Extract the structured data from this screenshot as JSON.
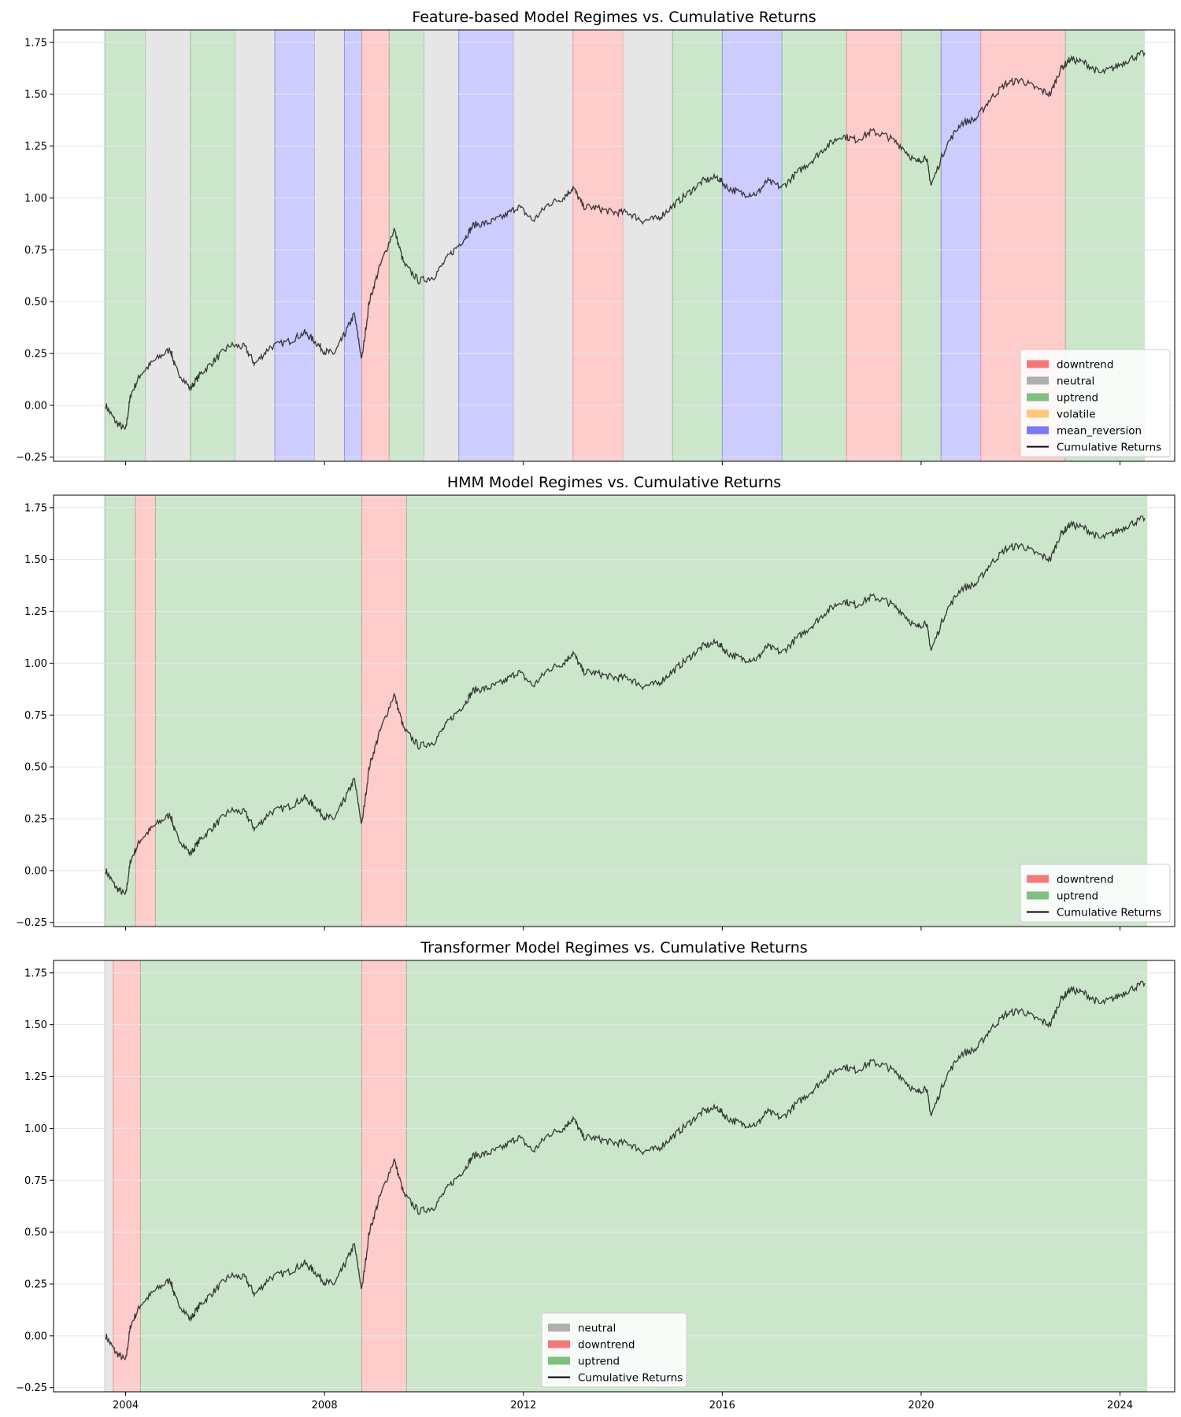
{
  "chart_data": [
    {
      "type": "line",
      "title": "Feature-based Model Regimes vs. Cumulative Returns",
      "xlabel": "",
      "ylabel": "",
      "xlim": [
        2002.55,
        2025.1
      ],
      "ylim": [
        -0.27,
        1.81
      ],
      "y_ticks": [
        -0.25,
        0.0,
        0.25,
        0.5,
        0.75,
        1.0,
        1.25,
        1.5,
        1.75
      ],
      "y_tick_labels": [
        "−0.25",
        "0.00",
        "0.25",
        "0.50",
        "0.75",
        "1.00",
        "1.25",
        "1.50",
        "1.75"
      ],
      "x_ticks": [
        2004,
        2008,
        2012,
        2016,
        2020,
        2024
      ],
      "x_tick_labels": [
        "",
        "",
        "",
        "",
        "",
        ""
      ],
      "grid": true,
      "legend_position": "lower-right",
      "legend": [
        {
          "label": "downtrend",
          "kind": "patch",
          "color": "#f47a7a"
        },
        {
          "label": "neutral",
          "kind": "patch",
          "color": "#b0b0b0"
        },
        {
          "label": "uptrend",
          "kind": "patch",
          "color": "#7fbf7f"
        },
        {
          "label": "volatile",
          "kind": "patch",
          "color": "#ffc77a"
        },
        {
          "label": "mean_reversion",
          "kind": "patch",
          "color": "#7a7af4"
        },
        {
          "label": "Cumulative Returns",
          "kind": "line",
          "color": "#000000"
        }
      ],
      "regimes": [
        {
          "start": 2003.58,
          "end": 2004.4,
          "regime": "uptrend"
        },
        {
          "start": 2004.4,
          "end": 2005.3,
          "regime": "neutral"
        },
        {
          "start": 2005.3,
          "end": 2006.2,
          "regime": "uptrend"
        },
        {
          "start": 2006.2,
          "end": 2007.0,
          "regime": "neutral"
        },
        {
          "start": 2007.0,
          "end": 2007.8,
          "regime": "mean_reversion"
        },
        {
          "start": 2007.8,
          "end": 2008.4,
          "regime": "neutral"
        },
        {
          "start": 2008.4,
          "end": 2008.75,
          "regime": "mean_reversion"
        },
        {
          "start": 2008.75,
          "end": 2009.3,
          "regime": "downtrend"
        },
        {
          "start": 2009.3,
          "end": 2010.0,
          "regime": "uptrend"
        },
        {
          "start": 2010.0,
          "end": 2010.7,
          "regime": "neutral"
        },
        {
          "start": 2010.7,
          "end": 2011.8,
          "regime": "mean_reversion"
        },
        {
          "start": 2011.8,
          "end": 2013.0,
          "regime": "neutral"
        },
        {
          "start": 2013.0,
          "end": 2014.0,
          "regime": "downtrend"
        },
        {
          "start": 2014.0,
          "end": 2015.0,
          "regime": "neutral"
        },
        {
          "start": 2015.0,
          "end": 2016.0,
          "regime": "uptrend"
        },
        {
          "start": 2016.0,
          "end": 2017.2,
          "regime": "mean_reversion"
        },
        {
          "start": 2017.2,
          "end": 2018.5,
          "regime": "uptrend"
        },
        {
          "start": 2018.5,
          "end": 2019.6,
          "regime": "downtrend"
        },
        {
          "start": 2019.6,
          "end": 2020.4,
          "regime": "uptrend"
        },
        {
          "start": 2020.4,
          "end": 2021.2,
          "regime": "mean_reversion"
        },
        {
          "start": 2021.2,
          "end": 2022.9,
          "regime": "downtrend"
        },
        {
          "start": 2022.9,
          "end": 2024.5,
          "regime": "uptrend"
        }
      ],
      "series": [
        {
          "name": "Cumulative Returns",
          "x": [
            2003.6,
            2003.8,
            2004.0,
            2004.1,
            2004.3,
            2004.6,
            2004.9,
            2005.0,
            2005.3,
            2005.5,
            2005.8,
            2006.1,
            2006.4,
            2006.6,
            2006.9,
            2007.3,
            2007.6,
            2007.8,
            2008.0,
            2008.2,
            2008.4,
            2008.6,
            2008.75,
            2008.9,
            2009.1,
            2009.4,
            2009.6,
            2009.9,
            2010.2,
            2010.5,
            2010.8,
            2011.0,
            2011.3,
            2011.6,
            2011.9,
            2012.2,
            2012.5,
            2012.8,
            2013.0,
            2013.2,
            2013.5,
            2013.8,
            2014.1,
            2014.4,
            2014.7,
            2015.0,
            2015.3,
            2015.6,
            2015.9,
            2016.1,
            2016.4,
            2016.7,
            2016.9,
            2017.2,
            2017.5,
            2017.8,
            2018.1,
            2018.4,
            2018.7,
            2019.0,
            2019.3,
            2019.6,
            2019.9,
            2020.1,
            2020.2,
            2020.5,
            2020.8,
            2021.1,
            2021.4,
            2021.7,
            2022.0,
            2022.3,
            2022.6,
            2022.8,
            2023.0,
            2023.3,
            2023.6,
            2023.9,
            2024.2,
            2024.5
          ],
          "y": [
            0.0,
            -0.08,
            -0.12,
            0.05,
            0.15,
            0.22,
            0.27,
            0.18,
            0.08,
            0.15,
            0.22,
            0.29,
            0.28,
            0.2,
            0.28,
            0.31,
            0.35,
            0.31,
            0.26,
            0.25,
            0.34,
            0.44,
            0.22,
            0.5,
            0.66,
            0.85,
            0.68,
            0.6,
            0.62,
            0.72,
            0.8,
            0.87,
            0.88,
            0.91,
            0.96,
            0.89,
            0.97,
            1.0,
            1.05,
            0.96,
            0.95,
            0.93,
            0.93,
            0.89,
            0.9,
            0.96,
            1.02,
            1.08,
            1.1,
            1.05,
            1.02,
            1.02,
            1.08,
            1.05,
            1.12,
            1.18,
            1.25,
            1.3,
            1.28,
            1.32,
            1.3,
            1.25,
            1.17,
            1.2,
            1.06,
            1.25,
            1.36,
            1.38,
            1.48,
            1.55,
            1.57,
            1.53,
            1.5,
            1.62,
            1.67,
            1.65,
            1.6,
            1.63,
            1.67,
            1.7
          ]
        }
      ]
    },
    {
      "type": "line",
      "title": "HMM Model Regimes vs. Cumulative Returns",
      "xlabel": "",
      "ylabel": "",
      "xlim": [
        2002.55,
        2025.1
      ],
      "ylim": [
        -0.27,
        1.81
      ],
      "y_ticks": [
        -0.25,
        0.0,
        0.25,
        0.5,
        0.75,
        1.0,
        1.25,
        1.5,
        1.75
      ],
      "y_tick_labels": [
        "−0.25",
        "0.00",
        "0.25",
        "0.50",
        "0.75",
        "1.00",
        "1.25",
        "1.50",
        "1.75"
      ],
      "x_ticks": [
        2004,
        2008,
        2012,
        2016,
        2020,
        2024
      ],
      "x_tick_labels": [
        "",
        "",
        "",
        "",
        "",
        ""
      ],
      "grid": true,
      "legend_position": "lower-right",
      "legend": [
        {
          "label": "downtrend",
          "kind": "patch",
          "color": "#f47a7a"
        },
        {
          "label": "uptrend",
          "kind": "patch",
          "color": "#7fbf7f"
        },
        {
          "label": "Cumulative Returns",
          "kind": "line",
          "color": "#000000"
        }
      ],
      "regimes": [
        {
          "start": 2003.58,
          "end": 2004.2,
          "regime": "uptrend"
        },
        {
          "start": 2004.2,
          "end": 2004.6,
          "regime": "downtrend"
        },
        {
          "start": 2004.6,
          "end": 2008.75,
          "regime": "uptrend"
        },
        {
          "start": 2008.75,
          "end": 2009.65,
          "regime": "downtrend"
        },
        {
          "start": 2009.65,
          "end": 2024.55,
          "regime": "uptrend"
        }
      ],
      "series": [
        {
          "name": "Cumulative Returns",
          "x": [
            2003.6,
            2003.8,
            2004.0,
            2004.1,
            2004.3,
            2004.6,
            2004.9,
            2005.0,
            2005.3,
            2005.5,
            2005.8,
            2006.1,
            2006.4,
            2006.6,
            2006.9,
            2007.3,
            2007.6,
            2007.8,
            2008.0,
            2008.2,
            2008.4,
            2008.6,
            2008.75,
            2008.9,
            2009.1,
            2009.4,
            2009.6,
            2009.9,
            2010.2,
            2010.5,
            2010.8,
            2011.0,
            2011.3,
            2011.6,
            2011.9,
            2012.2,
            2012.5,
            2012.8,
            2013.0,
            2013.2,
            2013.5,
            2013.8,
            2014.1,
            2014.4,
            2014.7,
            2015.0,
            2015.3,
            2015.6,
            2015.9,
            2016.1,
            2016.4,
            2016.7,
            2016.9,
            2017.2,
            2017.5,
            2017.8,
            2018.1,
            2018.4,
            2018.7,
            2019.0,
            2019.3,
            2019.6,
            2019.9,
            2020.1,
            2020.2,
            2020.5,
            2020.8,
            2021.1,
            2021.4,
            2021.7,
            2022.0,
            2022.3,
            2022.6,
            2022.8,
            2023.0,
            2023.3,
            2023.6,
            2023.9,
            2024.2,
            2024.5
          ],
          "y": [
            0.0,
            -0.08,
            -0.12,
            0.05,
            0.15,
            0.22,
            0.27,
            0.18,
            0.08,
            0.15,
            0.22,
            0.29,
            0.28,
            0.2,
            0.28,
            0.31,
            0.35,
            0.31,
            0.26,
            0.25,
            0.34,
            0.44,
            0.22,
            0.5,
            0.66,
            0.85,
            0.68,
            0.6,
            0.62,
            0.72,
            0.8,
            0.87,
            0.88,
            0.91,
            0.96,
            0.89,
            0.97,
            1.0,
            1.05,
            0.96,
            0.95,
            0.93,
            0.93,
            0.89,
            0.9,
            0.96,
            1.02,
            1.08,
            1.1,
            1.05,
            1.02,
            1.02,
            1.08,
            1.05,
            1.12,
            1.18,
            1.25,
            1.3,
            1.28,
            1.32,
            1.3,
            1.25,
            1.17,
            1.2,
            1.06,
            1.25,
            1.36,
            1.38,
            1.48,
            1.55,
            1.57,
            1.53,
            1.5,
            1.62,
            1.67,
            1.65,
            1.6,
            1.63,
            1.67,
            1.7
          ]
        }
      ]
    },
    {
      "type": "line",
      "title": "Transformer Model Regimes vs. Cumulative Returns",
      "xlabel": "",
      "ylabel": "",
      "xlim": [
        2002.55,
        2025.1
      ],
      "ylim": [
        -0.27,
        1.81
      ],
      "y_ticks": [
        -0.25,
        0.0,
        0.25,
        0.5,
        0.75,
        1.0,
        1.25,
        1.5,
        1.75
      ],
      "y_tick_labels": [
        "−0.25",
        "0.00",
        "0.25",
        "0.50",
        "0.75",
        "1.00",
        "1.25",
        "1.50",
        "1.75"
      ],
      "x_ticks": [
        2004,
        2008,
        2012,
        2016,
        2020,
        2024
      ],
      "x_tick_labels": [
        "2004",
        "2008",
        "2012",
        "2016",
        "2020",
        "2024"
      ],
      "grid": true,
      "legend_position": "lower-center",
      "legend": [
        {
          "label": "neutral",
          "kind": "patch",
          "color": "#b0b0b0"
        },
        {
          "label": "downtrend",
          "kind": "patch",
          "color": "#f47a7a"
        },
        {
          "label": "uptrend",
          "kind": "patch",
          "color": "#7fbf7f"
        },
        {
          "label": "Cumulative Returns",
          "kind": "line",
          "color": "#000000"
        }
      ],
      "regimes": [
        {
          "start": 2003.58,
          "end": 2003.75,
          "regime": "neutral"
        },
        {
          "start": 2003.75,
          "end": 2004.3,
          "regime": "downtrend"
        },
        {
          "start": 2004.3,
          "end": 2008.75,
          "regime": "uptrend"
        },
        {
          "start": 2008.75,
          "end": 2009.65,
          "regime": "downtrend"
        },
        {
          "start": 2009.65,
          "end": 2024.55,
          "regime": "uptrend"
        }
      ],
      "series": [
        {
          "name": "Cumulative Returns",
          "x": [
            2003.6,
            2003.8,
            2004.0,
            2004.1,
            2004.3,
            2004.6,
            2004.9,
            2005.0,
            2005.3,
            2005.5,
            2005.8,
            2006.1,
            2006.4,
            2006.6,
            2006.9,
            2007.3,
            2007.6,
            2007.8,
            2008.0,
            2008.2,
            2008.4,
            2008.6,
            2008.75,
            2008.9,
            2009.1,
            2009.4,
            2009.6,
            2009.9,
            2010.2,
            2010.5,
            2010.8,
            2011.0,
            2011.3,
            2011.6,
            2011.9,
            2012.2,
            2012.5,
            2012.8,
            2013.0,
            2013.2,
            2013.5,
            2013.8,
            2014.1,
            2014.4,
            2014.7,
            2015.0,
            2015.3,
            2015.6,
            2015.9,
            2016.1,
            2016.4,
            2016.7,
            2016.9,
            2017.2,
            2017.5,
            2017.8,
            2018.1,
            2018.4,
            2018.7,
            2019.0,
            2019.3,
            2019.6,
            2019.9,
            2020.1,
            2020.2,
            2020.5,
            2020.8,
            2021.1,
            2021.4,
            2021.7,
            2022.0,
            2022.3,
            2022.6,
            2022.8,
            2023.0,
            2023.3,
            2023.6,
            2023.9,
            2024.2,
            2024.5
          ],
          "y": [
            0.0,
            -0.08,
            -0.12,
            0.05,
            0.15,
            0.22,
            0.27,
            0.18,
            0.08,
            0.15,
            0.22,
            0.29,
            0.28,
            0.2,
            0.28,
            0.31,
            0.35,
            0.31,
            0.26,
            0.25,
            0.34,
            0.44,
            0.22,
            0.5,
            0.66,
            0.85,
            0.68,
            0.6,
            0.62,
            0.72,
            0.8,
            0.87,
            0.88,
            0.91,
            0.96,
            0.89,
            0.97,
            1.0,
            1.05,
            0.96,
            0.95,
            0.93,
            0.93,
            0.89,
            0.9,
            0.96,
            1.02,
            1.08,
            1.1,
            1.05,
            1.02,
            1.02,
            1.08,
            1.05,
            1.12,
            1.18,
            1.25,
            1.3,
            1.28,
            1.32,
            1.3,
            1.25,
            1.17,
            1.2,
            1.06,
            1.25,
            1.36,
            1.38,
            1.48,
            1.55,
            1.57,
            1.53,
            1.5,
            1.62,
            1.67,
            1.65,
            1.6,
            1.63,
            1.67,
            1.7
          ]
        }
      ]
    }
  ],
  "colors": {
    "downtrend": "#ff0000",
    "neutral": "#808080",
    "uptrend": "#008000",
    "volatile": "#ffa500",
    "mean_reversion": "#0000ff",
    "line": "#1a1a1a",
    "grid": "#e6e6e6"
  }
}
